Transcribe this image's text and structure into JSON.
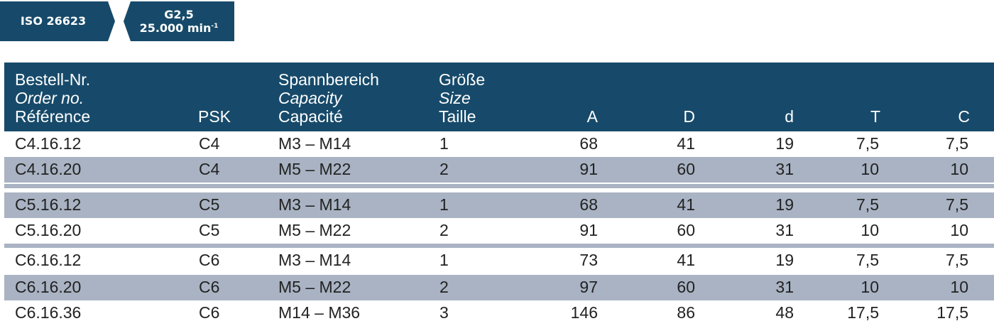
{
  "colors": {
    "header_bg": "#174a6a",
    "stripe": "#a9b3c3",
    "text": "#222222"
  },
  "badges": {
    "iso": "ISO 26623",
    "balance": "G2,5",
    "speed": "25.000 min",
    "speed_exp": "-1"
  },
  "header": {
    "order": {
      "de": "Bestell-Nr.",
      "en": "Order no.",
      "fr": "Référence"
    },
    "psk": "PSK",
    "capacity": {
      "de": "Spannbereich",
      "en": "Capacity",
      "fr": "Capacité"
    },
    "size": {
      "de": "Größe",
      "en": "Size",
      "fr": "Taille"
    },
    "a": "A",
    "d_upper": "D",
    "d_lower": "d",
    "t": "T",
    "c": "C"
  },
  "rows": [
    {
      "order": "C4.16.12",
      "psk": "C4",
      "range": "M3 – M14",
      "size": "1",
      "a": "68",
      "d_upper": "41",
      "d_lower": "19",
      "t": "7,5",
      "c": "7,5"
    },
    {
      "order": "C4.16.20",
      "psk": "C4",
      "range": "M5 – M22",
      "size": "2",
      "a": "91",
      "d_upper": "60",
      "d_lower": "31",
      "t": "10",
      "c": "10"
    },
    {
      "order": "C5.16.12",
      "psk": "C5",
      "range": "M3 – M14",
      "size": "1",
      "a": "68",
      "d_upper": "41",
      "d_lower": "19",
      "t": "7,5",
      "c": "7,5"
    },
    {
      "order": "C5.16.20",
      "psk": "C5",
      "range": "M5 – M22",
      "size": "2",
      "a": "91",
      "d_upper": "60",
      "d_lower": "31",
      "t": "10",
      "c": "10"
    },
    {
      "order": "C6.16.12",
      "psk": "C6",
      "range": "M3 – M14",
      "size": "1",
      "a": "73",
      "d_upper": "41",
      "d_lower": "19",
      "t": "7,5",
      "c": "7,5"
    },
    {
      "order": "C6.16.20",
      "psk": "C6",
      "range": "M5 – M22",
      "size": "2",
      "a": "97",
      "d_upper": "60",
      "d_lower": "31",
      "t": "10",
      "c": "10"
    },
    {
      "order": "C6.16.36",
      "psk": "C6",
      "range": "M14 – M36",
      "size": "3",
      "a": "146",
      "d_upper": "86",
      "d_lower": "48",
      "t": "17,5",
      "c": "17,5"
    }
  ]
}
